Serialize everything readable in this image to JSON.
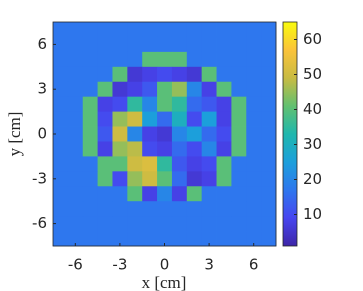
{
  "chart_data": {
    "type": "heatmap",
    "colormap": "parula",
    "x_label": "x [cm]",
    "y_label": "y [cm]",
    "x": [
      -7,
      -6,
      -5,
      -4,
      -3,
      -2,
      -1,
      0,
      1,
      2,
      3,
      4,
      5,
      6,
      7
    ],
    "y": [
      7,
      6,
      5,
      4,
      3,
      2,
      1,
      0,
      -1,
      -2,
      -3,
      -4,
      -5,
      -6,
      -7
    ],
    "z": [
      [
        17,
        17,
        17,
        17,
        17,
        17,
        17,
        17,
        17,
        17,
        17,
        17,
        17,
        17,
        17
      ],
      [
        17,
        17,
        17,
        17,
        17,
        17,
        17,
        17,
        17,
        17,
        17,
        17,
        17,
        17,
        17
      ],
      [
        17,
        17,
        17,
        17,
        17,
        17,
        40,
        40,
        40,
        17,
        17,
        17,
        17,
        17,
        17
      ],
      [
        17,
        17,
        17,
        17,
        40,
        6,
        8,
        10,
        8,
        6,
        40,
        17,
        17,
        17,
        17
      ],
      [
        17,
        17,
        17,
        40,
        6,
        8,
        12,
        40,
        45,
        20,
        8,
        40,
        17,
        17,
        17
      ],
      [
        17,
        17,
        40,
        8,
        10,
        35,
        20,
        40,
        35,
        15,
        12,
        8,
        40,
        17,
        17
      ],
      [
        17,
        17,
        40,
        10,
        45,
        50,
        25,
        15,
        30,
        10,
        25,
        8,
        40,
        17,
        17
      ],
      [
        17,
        17,
        40,
        12,
        50,
        20,
        8,
        6,
        20,
        25,
        15,
        10,
        40,
        17,
        17
      ],
      [
        17,
        17,
        40,
        8,
        45,
        48,
        10,
        8,
        15,
        10,
        20,
        8,
        40,
        17,
        17
      ],
      [
        17,
        17,
        17,
        40,
        40,
        50,
        52,
        35,
        12,
        8,
        10,
        40,
        17,
        17,
        17
      ],
      [
        17,
        17,
        17,
        40,
        10,
        45,
        50,
        40,
        15,
        6,
        8,
        40,
        17,
        17,
        17
      ],
      [
        17,
        17,
        17,
        17,
        17,
        40,
        8,
        20,
        8,
        40,
        17,
        17,
        17,
        17,
        17
      ],
      [
        17,
        17,
        17,
        17,
        17,
        17,
        17,
        17,
        17,
        17,
        17,
        17,
        17,
        17,
        17
      ],
      [
        17,
        17,
        17,
        17,
        17,
        17,
        17,
        17,
        17,
        17,
        17,
        17,
        17,
        17,
        17
      ],
      [
        17,
        17,
        17,
        17,
        17,
        17,
        17,
        17,
        17,
        17,
        17,
        17,
        17,
        17,
        17
      ]
    ],
    "xlim": [
      -7.5,
      7.5
    ],
    "ylim": [
      -7.5,
      7.5
    ],
    "xticks": [
      -6,
      -3,
      0,
      3,
      6
    ],
    "yticks": [
      -6,
      -3,
      0,
      3,
      6
    ],
    "clim": [
      1,
      65
    ],
    "cticks": [
      10,
      20,
      30,
      40,
      50,
      60
    ]
  }
}
